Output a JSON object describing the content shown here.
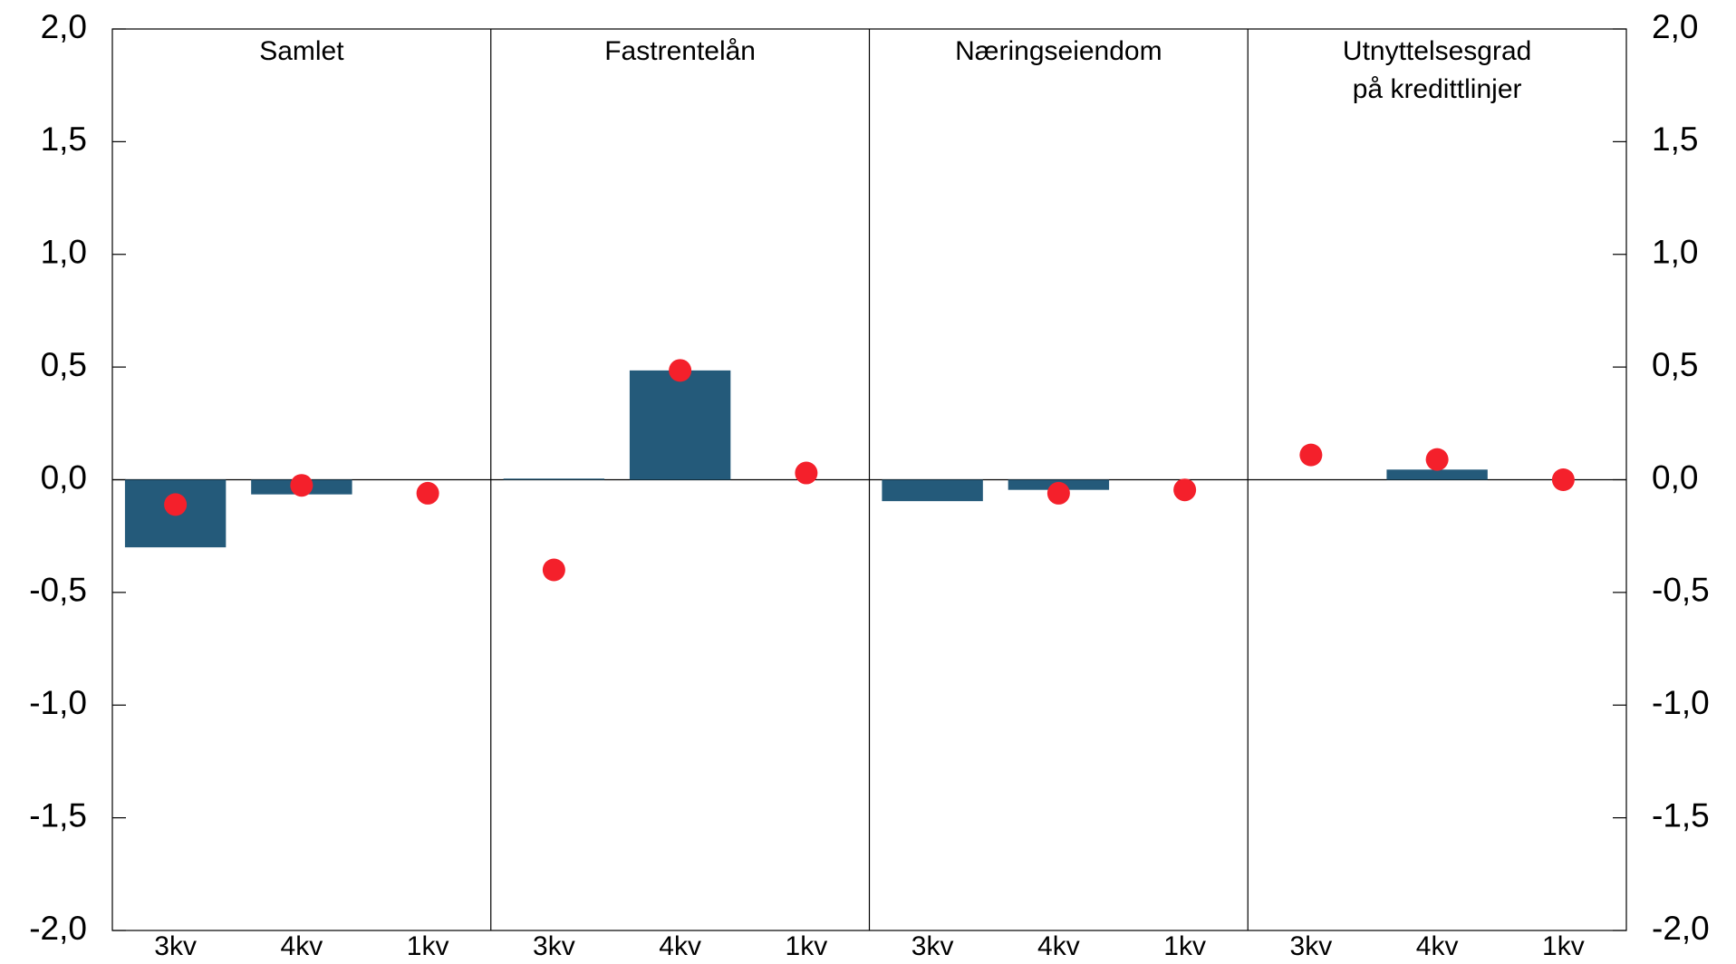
{
  "chart_data": {
    "type": "bar",
    "groups": [
      [
        "Samlet"
      ],
      [
        "Fastrentelån"
      ],
      [
        "Næringseiendom"
      ],
      [
        "Utnyttelsesgrad",
        "på kredittlinjer"
      ]
    ],
    "categories": [
      "3kv",
      "4kv",
      "1kv",
      "3kv",
      "4kv",
      "1kv",
      "3kv",
      "4kv",
      "1kv",
      "3kv",
      "4kv",
      "1kv"
    ],
    "series": [
      {
        "type": "bar",
        "color": "#245a7a",
        "values": [
          -0.3,
          -0.065,
          null,
          0.005,
          0.485,
          null,
          -0.095,
          -0.045,
          null,
          null,
          0.045,
          null
        ]
      },
      {
        "type": "scatter",
        "color": "#f4202b",
        "values": [
          -0.11,
          -0.025,
          -0.06,
          -0.4,
          0.485,
          0.03,
          null,
          -0.06,
          -0.045,
          0.11,
          0.09,
          0.0
        ]
      }
    ],
    "ylim": [
      -2,
      2
    ],
    "yticks": [
      {
        "value": -2,
        "label": "-2,0"
      },
      {
        "value": -1.5,
        "label": "-1,5"
      },
      {
        "value": -1,
        "label": "-1,0"
      },
      {
        "value": -0.5,
        "label": "-0,5"
      },
      {
        "value": 0,
        "label": "0,0"
      },
      {
        "value": 0.5,
        "label": "0,5"
      },
      {
        "value": 1,
        "label": "1,0"
      },
      {
        "value": 1.5,
        "label": "1,5"
      },
      {
        "value": 2,
        "label": "2,0"
      }
    ]
  }
}
